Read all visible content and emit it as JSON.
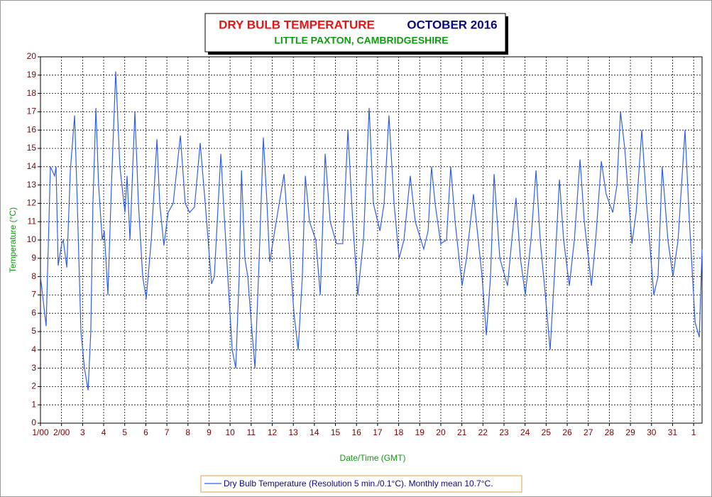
{
  "chart_data": {
    "type": "line",
    "title": "DRY BULB TEMPERATURE",
    "title_period": "OCTOBER 2016",
    "subtitle": "LITTLE PAXTON, CAMBRIDGESHIRE",
    "xlabel": "Date/Time (GMT)",
    "ylabel": "Temperature (°C)",
    "xlim": [
      0,
      31.4
    ],
    "ylim": [
      0,
      20
    ],
    "xticks": [
      {
        "value": 0,
        "label": "1/00"
      },
      {
        "value": 1,
        "label": "2/00"
      },
      {
        "value": 2,
        "label": "3"
      },
      {
        "value": 3,
        "label": "4"
      },
      {
        "value": 4,
        "label": "5"
      },
      {
        "value": 5,
        "label": "6"
      },
      {
        "value": 6,
        "label": "7"
      },
      {
        "value": 7,
        "label": "8"
      },
      {
        "value": 8,
        "label": "9"
      },
      {
        "value": 9,
        "label": "10"
      },
      {
        "value": 10,
        "label": "11"
      },
      {
        "value": 11,
        "label": "12"
      },
      {
        "value": 12,
        "label": "13"
      },
      {
        "value": 13,
        "label": "14"
      },
      {
        "value": 14,
        "label": "15"
      },
      {
        "value": 15,
        "label": "16"
      },
      {
        "value": 16,
        "label": "17"
      },
      {
        "value": 17,
        "label": "18"
      },
      {
        "value": 18,
        "label": "19"
      },
      {
        "value": 19,
        "label": "20"
      },
      {
        "value": 20,
        "label": "21"
      },
      {
        "value": 21,
        "label": "22"
      },
      {
        "value": 22,
        "label": "23"
      },
      {
        "value": 23,
        "label": "24"
      },
      {
        "value": 24,
        "label": "25"
      },
      {
        "value": 25,
        "label": "26"
      },
      {
        "value": 26,
        "label": "27"
      },
      {
        "value": 27,
        "label": "28"
      },
      {
        "value": 28,
        "label": "29"
      },
      {
        "value": 29,
        "label": "30"
      },
      {
        "value": 30,
        "label": "31"
      },
      {
        "value": 31,
        "label": "1"
      }
    ],
    "yticks": [
      0,
      1,
      2,
      3,
      4,
      5,
      6,
      7,
      8,
      9,
      10,
      11,
      12,
      13,
      14,
      15,
      16,
      17,
      18,
      19,
      20
    ],
    "grid": true,
    "x": [
      0,
      0.27,
      0.47,
      0.67,
      0.74,
      0.84,
      1.01,
      1.08,
      1.25,
      1.42,
      1.62,
      1.75,
      1.92,
      2.09,
      2.26,
      2.39,
      2.49,
      2.63,
      2.76,
      2.93,
      3.03,
      3.2,
      3.37,
      3.57,
      3.77,
      4.01,
      4.11,
      4.25,
      4.48,
      4.65,
      4.85,
      5.02,
      5.26,
      5.53,
      5.66,
      5.86,
      6.06,
      6.3,
      6.64,
      6.87,
      7.08,
      7.31,
      7.58,
      7.82,
      8.12,
      8.25,
      8.56,
      8.69,
      8.89,
      9.1,
      9.27,
      9.43,
      9.54,
      9.7,
      9.84,
      9.97,
      10.18,
      10.38,
      10.58,
      10.75,
      10.88,
      11.19,
      11.56,
      11.79,
      12.03,
      12.23,
      12.43,
      12.57,
      12.77,
      13.07,
      13.28,
      13.51,
      13.75,
      14.05,
      14.35,
      14.59,
      14.82,
      15.06,
      15.33,
      15.6,
      15.8,
      16.11,
      16.31,
      16.54,
      16.78,
      17.02,
      17.25,
      17.55,
      17.79,
      18.19,
      18.4,
      18.56,
      18.73,
      19.0,
      19.27,
      19.47,
      19.68,
      20.01,
      20.22,
      20.55,
      20.96,
      21.16,
      21.36,
      21.53,
      21.8,
      22.17,
      22.37,
      22.57,
      22.78,
      23.01,
      23.28,
      23.52,
      23.72,
      23.96,
      24.19,
      24.39,
      24.63,
      24.83,
      25.1,
      25.34,
      25.61,
      25.81,
      26.15,
      26.35,
      26.62,
      26.85,
      27.16,
      27.36,
      27.53,
      27.73,
      28.07,
      28.27,
      28.54,
      28.77,
      29.11,
      29.31,
      29.51,
      29.78,
      30.02,
      30.26,
      30.59,
      30.8,
      31.07,
      31.27,
      31.4
    ],
    "series": [
      {
        "name": "Dry Bulb Temperature (Resolution 5 min./0.1°C). Monthly mean 10.7°C.",
        "color": "#2f5ff0",
        "values": [
          8,
          5.3,
          14,
          13.5,
          14,
          8.6,
          9.8,
          10,
          8.5,
          13.8,
          16.8,
          12,
          5,
          3,
          1.8,
          5,
          12,
          17.2,
          13,
          10,
          10.5,
          7,
          13,
          19.2,
          14,
          11.5,
          13.5,
          10,
          17,
          12,
          8,
          6.8,
          10,
          15.5,
          12,
          9.7,
          11.5,
          12,
          15.7,
          12,
          11.5,
          11.8,
          15.3,
          12,
          7.6,
          8,
          14.7,
          12,
          8,
          4,
          3,
          8,
          13.8,
          9,
          8,
          6,
          3,
          9,
          15.6,
          12,
          8.8,
          11,
          13.6,
          10,
          6,
          4,
          8,
          13.5,
          11,
          10,
          7,
          14.7,
          11,
          9.8,
          9.8,
          16,
          11,
          7,
          10,
          17.2,
          12,
          10.5,
          12,
          16.8,
          12,
          9,
          10,
          13.5,
          11,
          9.5,
          10.5,
          14,
          12,
          9.8,
          10,
          14,
          11,
          7.5,
          9,
          12.5,
          8,
          4.8,
          8,
          13.6,
          9,
          7.5,
          10,
          12.3,
          9,
          7,
          10,
          13.8,
          10,
          7,
          4,
          8,
          13.3,
          10,
          7.5,
          10,
          14.4,
          11,
          7.5,
          10,
          14.3,
          12.5,
          11.5,
          13,
          17,
          15,
          9.8,
          11.5,
          16,
          12,
          7,
          8,
          14,
          10,
          8,
          10,
          16,
          11,
          5.5,
          4.7,
          9.5
        ]
      }
    ]
  }
}
